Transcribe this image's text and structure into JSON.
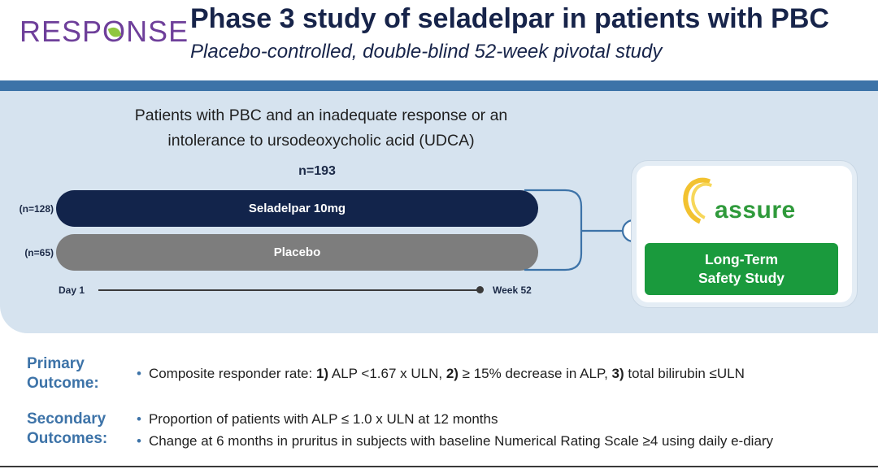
{
  "header": {
    "logo": {
      "text_before": "RESP",
      "text_o": "O",
      "text_after": "NSE"
    },
    "title": "Phase 3 study of seladelpar in patients with PBC",
    "subtitle": "Placebo-controlled, double-blind 52-week pivotal study"
  },
  "design": {
    "population": "Patients with PBC and an inadequate response or an intolerance to ursodeoxycholic acid (UDCA)",
    "n_total": "n=193",
    "arms": [
      {
        "n_label": "(n=128)",
        "label": "Seladelpar 10mg",
        "color": "#12244b"
      },
      {
        "n_label": "(n=65)",
        "label": "Placebo",
        "color": "#7d7d7d"
      }
    ],
    "timeline": {
      "start": "Day 1",
      "end": "Week 52"
    }
  },
  "extension": {
    "logo_text": "assure",
    "button_line1": "Long-Term",
    "button_line2": "Safety Study",
    "button_color": "#1a9a3d"
  },
  "outcomes": {
    "primary": {
      "label_line1": "Primary",
      "label_line2": "Outcome:",
      "items": [
        {
          "p1": "Composite responder rate: ",
          "b1": "1)",
          "p2": " ALP <1.67 x ULN, ",
          "b2": "2)",
          "p3": " ≥ 15% decrease in ALP, ",
          "b3": "3)",
          "p4": " total bilirubin ≤ULN"
        }
      ]
    },
    "secondary": {
      "label_line1": "Secondary",
      "label_line2": "Outcomes:",
      "items": [
        "Proportion of patients with ALP ≤ 1.0 x ULN at 12 months",
        "Change at 6 months in pruritus in subjects with baseline Numerical Rating Scale ≥4 using daily e-diary"
      ]
    }
  },
  "colors": {
    "accent_blue": "#3d73a8",
    "panel_bg": "#d6e3ef",
    "navy": "#17244a",
    "logo_purple": "#6e3f9a"
  }
}
